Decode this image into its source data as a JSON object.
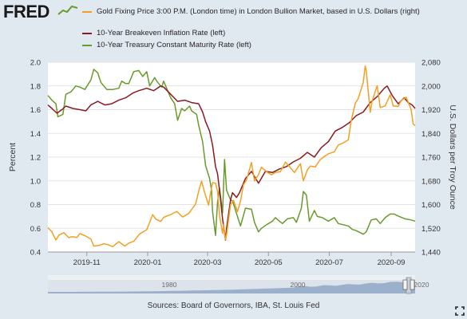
{
  "header": {
    "logo_text": "FRED",
    "logo_icon": "fred-chart-line-icon"
  },
  "colors": {
    "gold": "#f2a024",
    "breakeven": "#8c1a24",
    "treasury": "#6a9a2c",
    "plot_bg": "#ffffff",
    "page_bg": "#e1e9f0",
    "navigator_fill": "#8fa8c6"
  },
  "chart_data": {
    "type": "line",
    "legend": [
      {
        "key": "gold",
        "label": "Gold Fixing Price 3:00 P.M. (London time) in London Bullion Market, based in U.S. Dollars (right)"
      },
      {
        "key": "breakeven",
        "label": "10-Year Breakeven Inflation Rate (left)"
      },
      {
        "key": "treasury",
        "label": "10-Year Treasury Constant Maturity Rate (left)"
      }
    ],
    "ylabel_left": "Percent",
    "ylabel_right": "U.S. Dollars per Troy Ounce",
    "ylim_left": [
      0.4,
      2.0
    ],
    "ylim_right": [
      1440,
      2080
    ],
    "yticks_left": [
      "0.4",
      "0.6",
      "0.8",
      "1.0",
      "1.2",
      "1.4",
      "1.6",
      "1.8",
      "2.0"
    ],
    "yticks_right": [
      "1,440",
      "1,520",
      "1,600",
      "1,680",
      "1,760",
      "1,840",
      "1,920",
      "2,000",
      "2,080"
    ],
    "xlim": [
      "2019-09-23",
      "2020-09-25"
    ],
    "xticks": [
      "2019-11",
      "2020-01",
      "2020-03",
      "2020-05",
      "2020-07",
      "2020-09"
    ],
    "series": [
      {
        "key": "treasury",
        "axis": "left",
        "points": [
          [
            "2019-09-23",
            1.72
          ],
          [
            "2019-09-27",
            1.68
          ],
          [
            "2019-10-01",
            1.65
          ],
          [
            "2019-10-03",
            1.54
          ],
          [
            "2019-10-08",
            1.56
          ],
          [
            "2019-10-11",
            1.73
          ],
          [
            "2019-10-16",
            1.75
          ],
          [
            "2019-10-21",
            1.8
          ],
          [
            "2019-10-25",
            1.79
          ],
          [
            "2019-10-30",
            1.77
          ],
          [
            "2019-11-05",
            1.85
          ],
          [
            "2019-11-08",
            1.94
          ],
          [
            "2019-11-12",
            1.91
          ],
          [
            "2019-11-15",
            1.83
          ],
          [
            "2019-11-21",
            1.77
          ],
          [
            "2019-11-27",
            1.77
          ],
          [
            "2019-12-03",
            1.78
          ],
          [
            "2019-12-06",
            1.84
          ],
          [
            "2019-12-10",
            1.82
          ],
          [
            "2019-12-13",
            1.82
          ],
          [
            "2019-12-18",
            1.92
          ],
          [
            "2019-12-23",
            1.93
          ],
          [
            "2019-12-27",
            1.88
          ],
          [
            "2019-12-31",
            1.92
          ],
          [
            "2020-01-03",
            1.8
          ],
          [
            "2020-01-08",
            1.87
          ],
          [
            "2020-01-10",
            1.84
          ],
          [
            "2020-01-15",
            1.79
          ],
          [
            "2020-01-17",
            1.84
          ],
          [
            "2020-01-21",
            1.76
          ],
          [
            "2020-01-24",
            1.7
          ],
          [
            "2020-01-28",
            1.65
          ],
          [
            "2020-01-31",
            1.51
          ],
          [
            "2020-02-04",
            1.61
          ],
          [
            "2020-02-07",
            1.59
          ],
          [
            "2020-02-12",
            1.63
          ],
          [
            "2020-02-14",
            1.59
          ],
          [
            "2020-02-19",
            1.56
          ],
          [
            "2020-02-21",
            1.47
          ],
          [
            "2020-02-25",
            1.33
          ],
          [
            "2020-02-28",
            1.13
          ],
          [
            "2020-03-03",
            1.02
          ],
          [
            "2020-03-05",
            0.92
          ],
          [
            "2020-03-06",
            0.74
          ],
          [
            "2020-03-09",
            0.54
          ],
          [
            "2020-03-11",
            0.82
          ],
          [
            "2020-03-13",
            0.94
          ],
          [
            "2020-03-16",
            0.73
          ],
          [
            "2020-03-18",
            1.18
          ],
          [
            "2020-03-20",
            0.92
          ],
          [
            "2020-03-24",
            0.84
          ],
          [
            "2020-03-26",
            0.83
          ],
          [
            "2020-03-31",
            0.7
          ],
          [
            "2020-04-03",
            0.62
          ],
          [
            "2020-04-08",
            0.77
          ],
          [
            "2020-04-14",
            0.76
          ],
          [
            "2020-04-17",
            0.65
          ],
          [
            "2020-04-21",
            0.57
          ],
          [
            "2020-04-24",
            0.6
          ],
          [
            "2020-04-29",
            0.63
          ],
          [
            "2020-05-05",
            0.66
          ],
          [
            "2020-05-08",
            0.69
          ],
          [
            "2020-05-12",
            0.66
          ],
          [
            "2020-05-15",
            0.64
          ],
          [
            "2020-05-20",
            0.68
          ],
          [
            "2020-05-26",
            0.69
          ],
          [
            "2020-05-29",
            0.65
          ],
          [
            "2020-06-03",
            0.77
          ],
          [
            "2020-06-05",
            0.91
          ],
          [
            "2020-06-08",
            0.88
          ],
          [
            "2020-06-11",
            0.66
          ],
          [
            "2020-06-16",
            0.75
          ],
          [
            "2020-06-19",
            0.7
          ],
          [
            "2020-06-24",
            0.69
          ],
          [
            "2020-06-30",
            0.66
          ],
          [
            "2020-07-06",
            0.69
          ],
          [
            "2020-07-10",
            0.64
          ],
          [
            "2020-07-15",
            0.63
          ],
          [
            "2020-07-20",
            0.62
          ],
          [
            "2020-07-24",
            0.59
          ],
          [
            "2020-07-28",
            0.58
          ],
          [
            "2020-08-04",
            0.55
          ],
          [
            "2020-08-07",
            0.57
          ],
          [
            "2020-08-12",
            0.67
          ],
          [
            "2020-08-17",
            0.68
          ],
          [
            "2020-08-21",
            0.64
          ],
          [
            "2020-08-26",
            0.69
          ],
          [
            "2020-08-31",
            0.72
          ],
          [
            "2020-09-04",
            0.72
          ],
          [
            "2020-09-09",
            0.7
          ],
          [
            "2020-09-15",
            0.68
          ],
          [
            "2020-09-21",
            0.67
          ],
          [
            "2020-09-25",
            0.66
          ]
        ]
      },
      {
        "key": "breakeven",
        "axis": "left",
        "points": [
          [
            "2019-09-23",
            1.64
          ],
          [
            "2019-09-27",
            1.61
          ],
          [
            "2019-10-02",
            1.57
          ],
          [
            "2019-10-07",
            1.6
          ],
          [
            "2019-10-11",
            1.63
          ],
          [
            "2019-10-18",
            1.61
          ],
          [
            "2019-10-25",
            1.6
          ],
          [
            "2019-10-31",
            1.59
          ],
          [
            "2019-11-05",
            1.64
          ],
          [
            "2019-11-12",
            1.67
          ],
          [
            "2019-11-19",
            1.64
          ],
          [
            "2019-11-26",
            1.65
          ],
          [
            "2019-12-03",
            1.68
          ],
          [
            "2019-12-10",
            1.7
          ],
          [
            "2019-12-17",
            1.74
          ],
          [
            "2019-12-23",
            1.76
          ],
          [
            "2019-12-31",
            1.78
          ],
          [
            "2020-01-07",
            1.76
          ],
          [
            "2020-01-14",
            1.8
          ],
          [
            "2020-01-17",
            1.79
          ],
          [
            "2020-01-24",
            1.73
          ],
          [
            "2020-01-31",
            1.67
          ],
          [
            "2020-02-07",
            1.68
          ],
          [
            "2020-02-14",
            1.66
          ],
          [
            "2020-02-21",
            1.65
          ],
          [
            "2020-02-25",
            1.58
          ],
          [
            "2020-02-28",
            1.5
          ],
          [
            "2020-03-03",
            1.42
          ],
          [
            "2020-03-06",
            1.3
          ],
          [
            "2020-03-09",
            1.12
          ],
          [
            "2020-03-11",
            1.06
          ],
          [
            "2020-03-13",
            0.92
          ],
          [
            "2020-03-16",
            0.68
          ],
          [
            "2020-03-18",
            0.56
          ],
          [
            "2020-03-19",
            0.5
          ],
          [
            "2020-03-20",
            0.6
          ],
          [
            "2020-03-24",
            0.84
          ],
          [
            "2020-03-26",
            0.9
          ],
          [
            "2020-03-30",
            0.86
          ],
          [
            "2020-04-02",
            0.9
          ],
          [
            "2020-04-08",
            1.02
          ],
          [
            "2020-04-14",
            1.08
          ],
          [
            "2020-04-21",
            0.98
          ],
          [
            "2020-04-28",
            1.08
          ],
          [
            "2020-05-05",
            1.07
          ],
          [
            "2020-05-12",
            1.1
          ],
          [
            "2020-05-19",
            1.12
          ],
          [
            "2020-05-26",
            1.16
          ],
          [
            "2020-06-02",
            1.19
          ],
          [
            "2020-06-09",
            1.24
          ],
          [
            "2020-06-16",
            1.2
          ],
          [
            "2020-06-23",
            1.28
          ],
          [
            "2020-06-30",
            1.33
          ],
          [
            "2020-07-07",
            1.42
          ],
          [
            "2020-07-14",
            1.45
          ],
          [
            "2020-07-21",
            1.49
          ],
          [
            "2020-07-28",
            1.55
          ],
          [
            "2020-08-04",
            1.58
          ],
          [
            "2020-08-11",
            1.66
          ],
          [
            "2020-08-18",
            1.71
          ],
          [
            "2020-08-25",
            1.78
          ],
          [
            "2020-08-28",
            1.8
          ],
          [
            "2020-09-02",
            1.72
          ],
          [
            "2020-09-08",
            1.65
          ],
          [
            "2020-09-14",
            1.7
          ],
          [
            "2020-09-18",
            1.66
          ],
          [
            "2020-09-22",
            1.64
          ],
          [
            "2020-09-25",
            1.61
          ]
        ]
      },
      {
        "key": "gold",
        "axis": "right",
        "points": [
          [
            "2019-09-23",
            1522
          ],
          [
            "2019-09-27",
            1508
          ],
          [
            "2019-10-01",
            1480
          ],
          [
            "2019-10-04",
            1497
          ],
          [
            "2019-10-09",
            1505
          ],
          [
            "2019-10-14",
            1488
          ],
          [
            "2019-10-17",
            1492
          ],
          [
            "2019-10-22",
            1489
          ],
          [
            "2019-10-25",
            1502
          ],
          [
            "2019-10-30",
            1495
          ],
          [
            "2019-11-05",
            1484
          ],
          [
            "2019-11-08",
            1460
          ],
          [
            "2019-11-13",
            1462
          ],
          [
            "2019-11-18",
            1468
          ],
          [
            "2019-11-22",
            1465
          ],
          [
            "2019-11-27",
            1458
          ],
          [
            "2019-12-03",
            1475
          ],
          [
            "2019-12-09",
            1460
          ],
          [
            "2019-12-13",
            1470
          ],
          [
            "2019-12-18",
            1476
          ],
          [
            "2019-12-24",
            1501
          ],
          [
            "2019-12-31",
            1515
          ],
          [
            "2020-01-06",
            1566
          ],
          [
            "2020-01-09",
            1551
          ],
          [
            "2020-01-14",
            1543
          ],
          [
            "2020-01-17",
            1557
          ],
          [
            "2020-01-24",
            1566
          ],
          [
            "2020-01-30",
            1577
          ],
          [
            "2020-02-05",
            1558
          ],
          [
            "2020-02-11",
            1570
          ],
          [
            "2020-02-18",
            1601
          ],
          [
            "2020-02-21",
            1644
          ],
          [
            "2020-02-24",
            1679
          ],
          [
            "2020-02-27",
            1641
          ],
          [
            "2020-03-02",
            1598
          ],
          [
            "2020-03-04",
            1640
          ],
          [
            "2020-03-06",
            1674
          ],
          [
            "2020-03-09",
            1672
          ],
          [
            "2020-03-11",
            1645
          ],
          [
            "2020-03-13",
            1562
          ],
          [
            "2020-03-16",
            1503
          ],
          [
            "2020-03-17",
            1533
          ],
          [
            "2020-03-19",
            1482
          ],
          [
            "2020-03-20",
            1498
          ],
          [
            "2020-03-24",
            1600
          ],
          [
            "2020-03-27",
            1614
          ],
          [
            "2020-03-31",
            1576
          ],
          [
            "2020-04-03",
            1612
          ],
          [
            "2020-04-06",
            1667
          ],
          [
            "2020-04-09",
            1683
          ],
          [
            "2020-04-14",
            1742
          ],
          [
            "2020-04-17",
            1680
          ],
          [
            "2020-04-21",
            1701
          ],
          [
            "2020-04-24",
            1726
          ],
          [
            "2020-04-29",
            1711
          ],
          [
            "2020-05-04",
            1700
          ],
          [
            "2020-05-08",
            1708
          ],
          [
            "2020-05-13",
            1711
          ],
          [
            "2020-05-18",
            1743
          ],
          [
            "2020-05-21",
            1732
          ],
          [
            "2020-05-27",
            1708
          ],
          [
            "2020-06-02",
            1738
          ],
          [
            "2020-06-05",
            1680
          ],
          [
            "2020-06-09",
            1717
          ],
          [
            "2020-06-12",
            1730
          ],
          [
            "2020-06-17",
            1727
          ],
          [
            "2020-06-22",
            1752
          ],
          [
            "2020-06-26",
            1762
          ],
          [
            "2020-06-30",
            1771
          ],
          [
            "2020-07-06",
            1778
          ],
          [
            "2020-07-10",
            1801
          ],
          [
            "2020-07-15",
            1808
          ],
          [
            "2020-07-20",
            1818
          ],
          [
            "2020-07-23",
            1883
          ],
          [
            "2020-07-27",
            1941
          ],
          [
            "2020-07-30",
            1958
          ],
          [
            "2020-08-04",
            2011
          ],
          [
            "2020-08-06",
            2067
          ],
          [
            "2020-08-07",
            2052
          ],
          [
            "2020-08-11",
            1911
          ],
          [
            "2020-08-13",
            1950
          ],
          [
            "2020-08-18",
            2001
          ],
          [
            "2020-08-21",
            1927
          ],
          [
            "2020-08-26",
            1933
          ],
          [
            "2020-08-31",
            1970
          ],
          [
            "2020-09-03",
            1933
          ],
          [
            "2020-09-08",
            1931
          ],
          [
            "2020-09-11",
            1951
          ],
          [
            "2020-09-16",
            1962
          ],
          [
            "2020-09-21",
            1921
          ],
          [
            "2020-09-23",
            1872
          ],
          [
            "2020-09-25",
            1866
          ]
        ]
      }
    ],
    "navigator": {
      "labels": [
        "1980",
        "2000",
        "2020"
      ]
    },
    "source": "Sources: Board of Governors, IBA, St. Louis Fed"
  }
}
